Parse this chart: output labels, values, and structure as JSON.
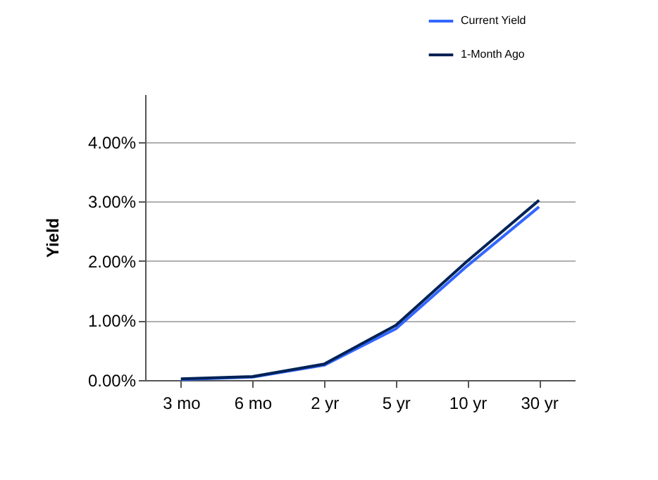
{
  "chart_data": {
    "type": "line",
    "ylabel": "Yield",
    "categories": [
      "3 mo",
      "6 mo",
      "2 yr",
      "5 yr",
      "10 yr",
      "30 yr"
    ],
    "series": [
      {
        "name": "Current Yield",
        "color": "#3366ff",
        "values": [
          0.01,
          0.05,
          0.25,
          0.86,
          1.92,
          2.91
        ]
      },
      {
        "name": "1-Month Ago",
        "color": "#002255",
        "values": [
          0.02,
          0.06,
          0.27,
          0.92,
          2.0,
          3.02
        ]
      }
    ],
    "ylim": [
      0,
      4.8
    ],
    "yticks": [
      {
        "value": 0,
        "label": "0.00%"
      },
      {
        "value": 1,
        "label": "1.00%"
      },
      {
        "value": 2,
        "label": "2.00%"
      },
      {
        "value": 3,
        "label": "3.00%"
      },
      {
        "value": 4,
        "label": "4.00%"
      }
    ],
    "grid": "y",
    "legend": "top right",
    "marker": "none",
    "line_style": "solid"
  }
}
